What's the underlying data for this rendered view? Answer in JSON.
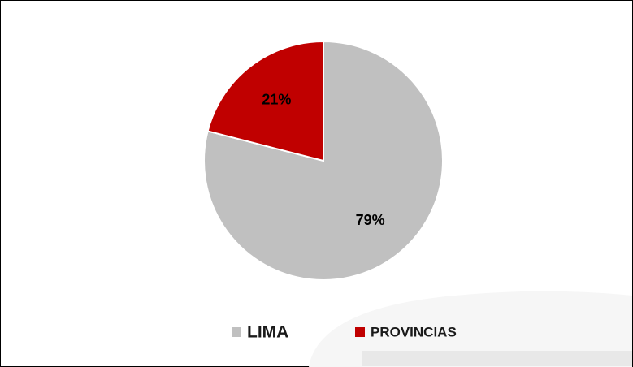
{
  "chart_data": {
    "type": "pie",
    "categories": [
      "LIMA",
      "PROVINCIAS"
    ],
    "values": [
      79,
      21
    ],
    "value_labels": [
      "79%",
      "21%"
    ],
    "colors": [
      "#c0c0c0",
      "#c00000"
    ],
    "legend": "bottom"
  }
}
